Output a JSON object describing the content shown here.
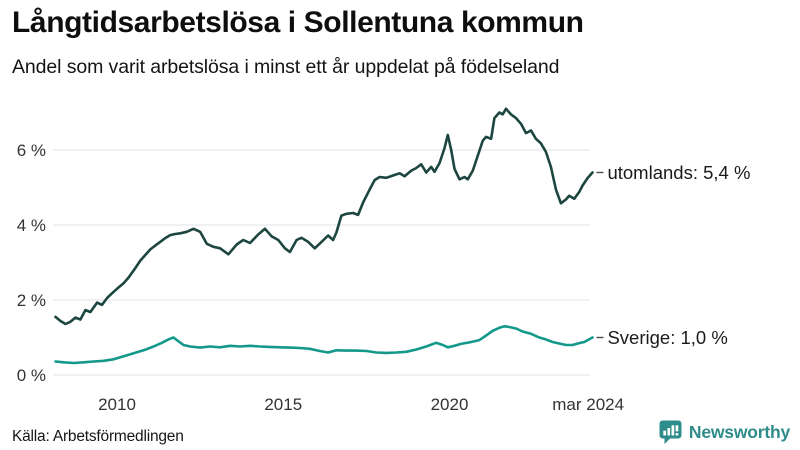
{
  "header": {
    "title": "Långtidsarbetslösa i Sollentuna kommun",
    "subtitle": "Andel som varit arbetslösa i minst ett år uppdelat på födelseland"
  },
  "footer": {
    "source": "Källa: Arbetsförmedlingen",
    "brand": "Newsworthy"
  },
  "colors": {
    "utomlands_line": "#1c463f",
    "sverige_line": "#14988b",
    "grid": "#e3e2e7",
    "brand_teal": "#2e8c8a",
    "text_dark": "#1a1a1a"
  },
  "chart_data": {
    "type": "line",
    "title": "Långtidsarbetslösa i Sollentuna kommun",
    "subtitle": "Andel som varit arbetslösa i minst ett år uppdelat på födelseland",
    "source": "Källa: Arbetsförmedlingen",
    "grid": true,
    "legend_position": "right-of-line-end",
    "x_axis": {
      "range": [
        2008.15,
        2024.3
      ],
      "ticks": [
        {
          "label": "2010",
          "year": 2010
        },
        {
          "label": "2015",
          "year": 2015
        },
        {
          "label": "2020",
          "year": 2020
        },
        {
          "label": "mar 2024",
          "year": 2024.17
        }
      ]
    },
    "y_axis": {
      "unit": "%",
      "range": [
        0,
        7.4
      ],
      "ticks": [
        {
          "label": "0 %",
          "value": 0
        },
        {
          "label": "2 %",
          "value": 2
        },
        {
          "label": "4 %",
          "value": 4
        },
        {
          "label": "6 %",
          "value": 6
        }
      ]
    },
    "series": [
      {
        "name": "utomlands",
        "label": "utomlands: 5,4 %",
        "last_value": "5,4 %",
        "color": "#1c463f",
        "points": [
          [
            2008.15,
            1.55
          ],
          [
            2008.3,
            1.44
          ],
          [
            2008.45,
            1.36
          ],
          [
            2008.6,
            1.42
          ],
          [
            2008.75,
            1.53
          ],
          [
            2008.9,
            1.48
          ],
          [
            2009.05,
            1.73
          ],
          [
            2009.2,
            1.68
          ],
          [
            2009.4,
            1.93
          ],
          [
            2009.55,
            1.87
          ],
          [
            2009.7,
            2.05
          ],
          [
            2009.85,
            2.18
          ],
          [
            2010.0,
            2.3
          ],
          [
            2010.2,
            2.45
          ],
          [
            2010.35,
            2.6
          ],
          [
            2010.55,
            2.85
          ],
          [
            2010.7,
            3.05
          ],
          [
            2010.85,
            3.2
          ],
          [
            2011.0,
            3.35
          ],
          [
            2011.15,
            3.45
          ],
          [
            2011.3,
            3.55
          ],
          [
            2011.45,
            3.65
          ],
          [
            2011.6,
            3.73
          ],
          [
            2011.75,
            3.76
          ],
          [
            2011.9,
            3.78
          ],
          [
            2012.1,
            3.82
          ],
          [
            2012.3,
            3.9
          ],
          [
            2012.5,
            3.82
          ],
          [
            2012.7,
            3.5
          ],
          [
            2012.9,
            3.42
          ],
          [
            2013.1,
            3.38
          ],
          [
            2013.35,
            3.22
          ],
          [
            2013.6,
            3.48
          ],
          [
            2013.8,
            3.6
          ],
          [
            2014.0,
            3.52
          ],
          [
            2014.25,
            3.75
          ],
          [
            2014.45,
            3.9
          ],
          [
            2014.65,
            3.7
          ],
          [
            2014.85,
            3.6
          ],
          [
            2015.05,
            3.38
          ],
          [
            2015.2,
            3.28
          ],
          [
            2015.4,
            3.6
          ],
          [
            2015.55,
            3.66
          ],
          [
            2015.75,
            3.55
          ],
          [
            2015.95,
            3.38
          ],
          [
            2016.15,
            3.55
          ],
          [
            2016.35,
            3.72
          ],
          [
            2016.5,
            3.6
          ],
          [
            2016.6,
            3.8
          ],
          [
            2016.75,
            4.25
          ],
          [
            2016.9,
            4.3
          ],
          [
            2017.1,
            4.32
          ],
          [
            2017.25,
            4.27
          ],
          [
            2017.4,
            4.6
          ],
          [
            2017.6,
            4.95
          ],
          [
            2017.75,
            5.2
          ],
          [
            2017.9,
            5.28
          ],
          [
            2018.1,
            5.26
          ],
          [
            2018.3,
            5.32
          ],
          [
            2018.5,
            5.38
          ],
          [
            2018.65,
            5.3
          ],
          [
            2018.85,
            5.45
          ],
          [
            2019.0,
            5.52
          ],
          [
            2019.15,
            5.62
          ],
          [
            2019.3,
            5.4
          ],
          [
            2019.45,
            5.55
          ],
          [
            2019.55,
            5.42
          ],
          [
            2019.7,
            5.65
          ],
          [
            2019.85,
            6.05
          ],
          [
            2019.95,
            6.4
          ],
          [
            2020.05,
            6.0
          ],
          [
            2020.15,
            5.5
          ],
          [
            2020.3,
            5.22
          ],
          [
            2020.45,
            5.28
          ],
          [
            2020.55,
            5.22
          ],
          [
            2020.7,
            5.45
          ],
          [
            2020.85,
            5.85
          ],
          [
            2021.0,
            6.25
          ],
          [
            2021.1,
            6.35
          ],
          [
            2021.25,
            6.3
          ],
          [
            2021.35,
            6.85
          ],
          [
            2021.5,
            7.0
          ],
          [
            2021.6,
            6.95
          ],
          [
            2021.7,
            7.1
          ],
          [
            2021.85,
            6.95
          ],
          [
            2022.0,
            6.85
          ],
          [
            2022.15,
            6.7
          ],
          [
            2022.3,
            6.45
          ],
          [
            2022.45,
            6.52
          ],
          [
            2022.6,
            6.3
          ],
          [
            2022.75,
            6.18
          ],
          [
            2022.9,
            5.95
          ],
          [
            2023.05,
            5.55
          ],
          [
            2023.2,
            4.95
          ],
          [
            2023.35,
            4.58
          ],
          [
            2023.5,
            4.68
          ],
          [
            2023.6,
            4.78
          ],
          [
            2023.75,
            4.7
          ],
          [
            2023.9,
            4.88
          ],
          [
            2024.0,
            5.05
          ],
          [
            2024.15,
            5.25
          ],
          [
            2024.3,
            5.4
          ]
        ]
      },
      {
        "name": "Sverige",
        "label": "Sverige: 1,0 %",
        "last_value": "1,0 %",
        "color": "#14988b",
        "points": [
          [
            2008.15,
            0.36
          ],
          [
            2008.4,
            0.34
          ],
          [
            2008.7,
            0.32
          ],
          [
            2009.0,
            0.34
          ],
          [
            2009.3,
            0.36
          ],
          [
            2009.6,
            0.38
          ],
          [
            2009.9,
            0.42
          ],
          [
            2010.2,
            0.5
          ],
          [
            2010.5,
            0.58
          ],
          [
            2010.8,
            0.66
          ],
          [
            2011.1,
            0.76
          ],
          [
            2011.35,
            0.86
          ],
          [
            2011.55,
            0.95
          ],
          [
            2011.7,
            1.0
          ],
          [
            2011.85,
            0.9
          ],
          [
            2012.0,
            0.8
          ],
          [
            2012.2,
            0.76
          ],
          [
            2012.5,
            0.73
          ],
          [
            2012.8,
            0.76
          ],
          [
            2013.1,
            0.74
          ],
          [
            2013.4,
            0.78
          ],
          [
            2013.7,
            0.76
          ],
          [
            2014.0,
            0.78
          ],
          [
            2014.3,
            0.76
          ],
          [
            2014.6,
            0.75
          ],
          [
            2014.9,
            0.74
          ],
          [
            2015.2,
            0.73
          ],
          [
            2015.5,
            0.72
          ],
          [
            2015.8,
            0.7
          ],
          [
            2016.1,
            0.64
          ],
          [
            2016.35,
            0.6
          ],
          [
            2016.6,
            0.66
          ],
          [
            2016.9,
            0.65
          ],
          [
            2017.2,
            0.65
          ],
          [
            2017.5,
            0.64
          ],
          [
            2017.8,
            0.6
          ],
          [
            2018.1,
            0.59
          ],
          [
            2018.4,
            0.6
          ],
          [
            2018.7,
            0.62
          ],
          [
            2019.0,
            0.68
          ],
          [
            2019.3,
            0.76
          ],
          [
            2019.6,
            0.86
          ],
          [
            2019.8,
            0.8
          ],
          [
            2019.95,
            0.74
          ],
          [
            2020.15,
            0.78
          ],
          [
            2020.35,
            0.83
          ],
          [
            2020.6,
            0.87
          ],
          [
            2020.9,
            0.93
          ],
          [
            2021.1,
            1.05
          ],
          [
            2021.3,
            1.18
          ],
          [
            2021.5,
            1.26
          ],
          [
            2021.65,
            1.3
          ],
          [
            2021.8,
            1.28
          ],
          [
            2022.0,
            1.24
          ],
          [
            2022.2,
            1.16
          ],
          [
            2022.45,
            1.1
          ],
          [
            2022.7,
            1.0
          ],
          [
            2022.9,
            0.95
          ],
          [
            2023.1,
            0.88
          ],
          [
            2023.3,
            0.84
          ],
          [
            2023.5,
            0.8
          ],
          [
            2023.7,
            0.8
          ],
          [
            2023.9,
            0.85
          ],
          [
            2024.05,
            0.88
          ],
          [
            2024.3,
            1.0
          ]
        ]
      }
    ]
  }
}
